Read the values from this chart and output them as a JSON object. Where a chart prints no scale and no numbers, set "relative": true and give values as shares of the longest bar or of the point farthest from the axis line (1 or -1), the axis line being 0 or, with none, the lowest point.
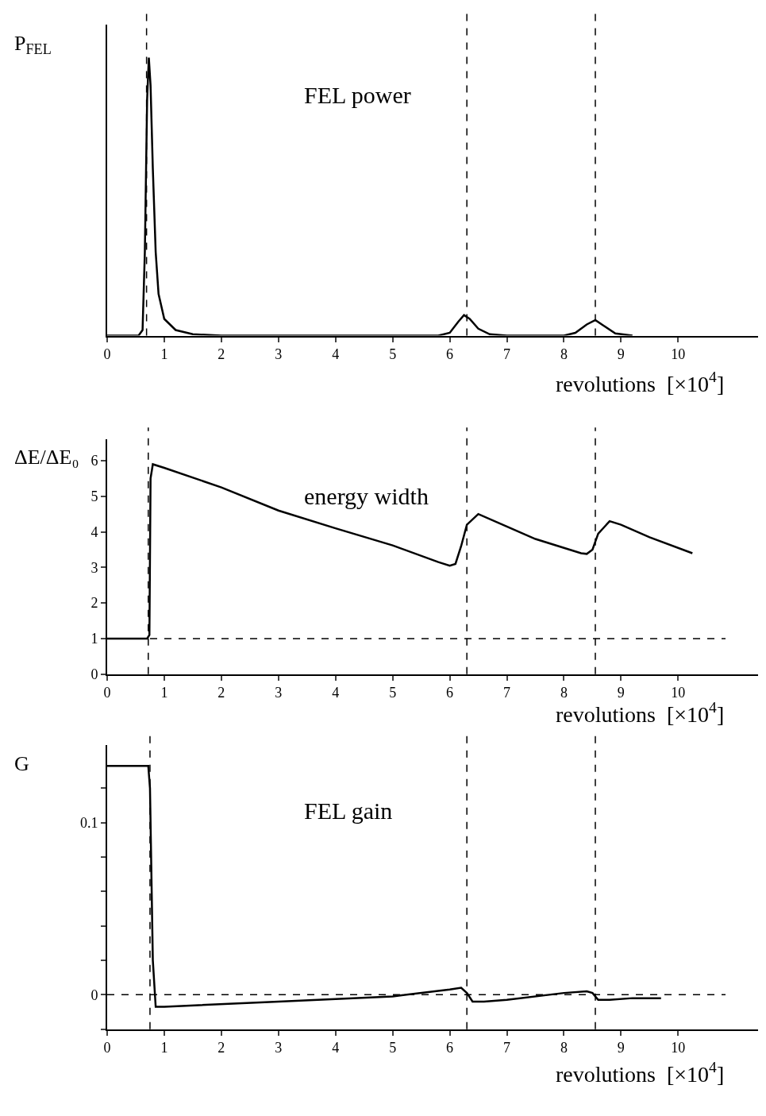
{
  "chart_data": [
    {
      "type": "line",
      "title": "FEL power",
      "xlabel": "revolutions  [×10$^{4}$]",
      "ylabel": "P$_{FEL}$",
      "relative": true,
      "tick_labels": "x",
      "x": [
        0,
        0.55,
        0.62,
        0.66,
        0.7,
        0.73,
        0.76,
        0.8,
        0.85,
        0.9,
        1.0,
        1.2,
        1.5,
        2,
        5.8,
        6.0,
        6.15,
        6.25,
        6.35,
        6.5,
        6.7,
        7,
        8.0,
        8.2,
        8.4,
        8.55,
        8.7,
        8.9,
        9.2
      ],
      "series": [
        {
          "color": "#000000",
          "values": [
            0,
            0,
            0.02,
            0.3,
            0.85,
            1,
            0.9,
            0.6,
            0.3,
            0.15,
            0.06,
            0.02,
            0.005,
            0,
            0,
            0.01,
            0.05,
            0.074,
            0.06,
            0.025,
            0.005,
            0,
            0,
            0.01,
            0.04,
            0.056,
            0.035,
            0.008,
            0
          ]
        }
      ],
      "xlim": [
        0,
        11.4
      ],
      "xticks": [
        0,
        1,
        2,
        3,
        4,
        5,
        6,
        7,
        8,
        9,
        10
      ],
      "ref_lines": [
        {
          "axis": "x",
          "value": 0.69,
          "line_style": "dashed"
        },
        {
          "axis": "x",
          "value": 6.3,
          "line_style": "dashed"
        },
        {
          "axis": "x",
          "value": 8.55,
          "line_style": "dashed"
        }
      ]
    },
    {
      "type": "line",
      "title": "energy width",
      "xlabel": "revolutions  [×10$^{4}$]",
      "ylabel": "ΔE/ΔE₀",
      "x": [
        0,
        0.7,
        0.74,
        0.76,
        0.8,
        1,
        2,
        3,
        4,
        5,
        5.8,
        6.0,
        6.1,
        6.2,
        6.3,
        6.5,
        7,
        7.5,
        8,
        8.3,
        8.4,
        8.5,
        8.6,
        8.8,
        9,
        9.5,
        10.25
      ],
      "series": [
        {
          "color": "#000000",
          "values": [
            1,
            1,
            1.1,
            5.5,
            5.9,
            5.8,
            5.25,
            4.6,
            4.1,
            3.62,
            3.15,
            3.05,
            3.1,
            3.6,
            4.2,
            4.5,
            4.15,
            3.8,
            3.55,
            3.4,
            3.38,
            3.5,
            3.95,
            4.3,
            4.2,
            3.85,
            3.4
          ]
        }
      ],
      "xlim": [
        0,
        11.4
      ],
      "xticks": [
        0,
        1,
        2,
        3,
        4,
        5,
        6,
        7,
        8,
        9,
        10
      ],
      "ylim": [
        0,
        6.6
      ],
      "yticks": [
        0,
        1,
        2,
        3,
        4,
        5,
        6
      ],
      "ref_lines": [
        {
          "axis": "x",
          "value": 0.72,
          "line_style": "dashed"
        },
        {
          "axis": "x",
          "value": 6.3,
          "line_style": "dashed"
        },
        {
          "axis": "x",
          "value": 8.55,
          "line_style": "dashed"
        },
        {
          "axis": "y",
          "value": 1,
          "line_style": "dashed"
        }
      ]
    },
    {
      "type": "line",
      "title": "FEL gain",
      "xlabel": "revolutions  [×10$^{4}$]",
      "ylabel": "G",
      "x": [
        0,
        0.72,
        0.75,
        0.8,
        0.85,
        1,
        3,
        5,
        6.0,
        6.2,
        6.3,
        6.4,
        6.6,
        7,
        8,
        8.4,
        8.5,
        8.6,
        8.8,
        9.2,
        9.7
      ],
      "series": [
        {
          "color": "#000000",
          "values": [
            0.133,
            0.133,
            0.12,
            0.02,
            -0.007,
            -0.007,
            -0.004,
            -0.001,
            0.003,
            0.004,
            0.001,
            -0.004,
            -0.004,
            -0.003,
            0.001,
            0.002,
            0.001,
            -0.003,
            -0.003,
            -0.002,
            -0.002
          ]
        }
      ],
      "xlim": [
        0,
        11.4
      ],
      "xticks": [
        0,
        1,
        2,
        3,
        4,
        5,
        6,
        7,
        8,
        9,
        10
      ],
      "ylim": [
        -0.02,
        0.145
      ],
      "yticks": [
        {
          "value": -0.02,
          "label": null
        },
        0,
        {
          "value": 0.02,
          "label": null
        },
        {
          "value": 0.04,
          "label": null
        },
        {
          "value": 0.06,
          "label": null
        },
        {
          "value": 0.08,
          "label": null
        },
        0.1,
        {
          "value": 0.12,
          "label": null
        }
      ],
      "ref_lines": [
        {
          "axis": "x",
          "value": 0.75,
          "line_style": "dashed"
        },
        {
          "axis": "x",
          "value": 6.3,
          "line_style": "dashed"
        },
        {
          "axis": "x",
          "value": 8.55,
          "line_style": "dashed"
        },
        {
          "axis": "y",
          "value": 0,
          "line_style": "dashed"
        }
      ]
    }
  ]
}
